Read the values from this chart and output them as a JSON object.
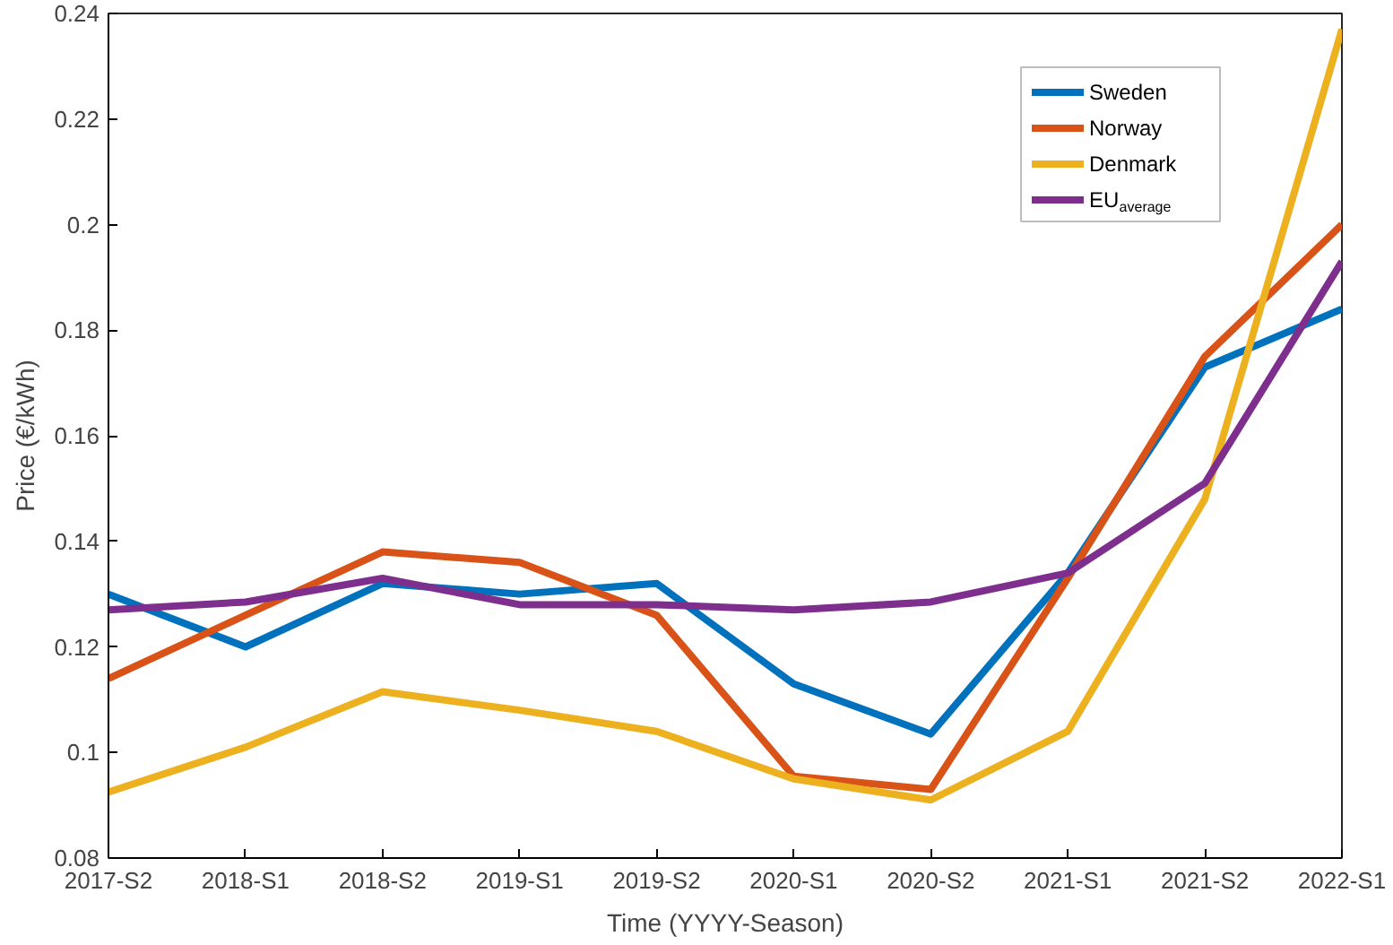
{
  "chart_data": {
    "type": "line",
    "xlabel": "Time (YYYY-Season)",
    "ylabel": "Price (€/kWh)",
    "categories": [
      "2017-S2",
      "2018-S1",
      "2018-S2",
      "2019-S1",
      "2019-S2",
      "2020-S1",
      "2020-S2",
      "2021-S1",
      "2021-S2",
      "2022-S1"
    ],
    "series": [
      {
        "name": "Sweden",
        "color": "#0072bd",
        "values": [
          0.13,
          0.12,
          0.132,
          0.13,
          0.132,
          0.113,
          0.1035,
          0.134,
          0.173,
          0.184
        ]
      },
      {
        "name": "Norway",
        "color": "#d95319",
        "values": [
          0.114,
          0.126,
          0.138,
          0.136,
          0.126,
          0.0955,
          0.093,
          0.133,
          0.175,
          0.2
        ]
      },
      {
        "name": "Denmark",
        "color": "#edb120",
        "values": [
          0.0925,
          0.101,
          0.1115,
          0.108,
          0.104,
          0.095,
          0.091,
          0.104,
          0.148,
          0.237
        ]
      },
      {
        "name": "EU$_{average}$",
        "color": "#7e2f8e",
        "values": [
          0.127,
          0.1285,
          0.133,
          0.128,
          0.128,
          0.127,
          0.1285,
          0.134,
          0.151,
          0.193
        ]
      }
    ],
    "ylim": [
      0.08,
      0.24
    ],
    "yticks": [
      0.08,
      0.1,
      0.12,
      0.14,
      0.16,
      0.18,
      0.2,
      0.22,
      0.24
    ],
    "grid": false,
    "legend": "top right",
    "marker": "none",
    "line_style": "solid"
  }
}
